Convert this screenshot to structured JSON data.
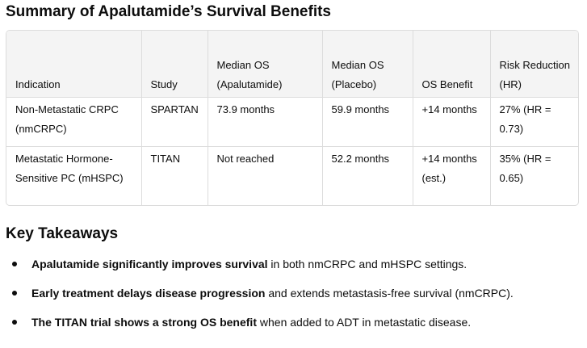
{
  "title": "Summary of Apalutamide’s Survival Benefits",
  "table": {
    "headers": [
      "Indication",
      "Study",
      "Median OS (Apalutamide)",
      "Median OS (Placebo)",
      "OS Benefit",
      "Risk Reduction (HR)"
    ],
    "rows": [
      [
        "Non-Metastatic CRPC (nmCRPC)",
        "SPARTAN",
        "73.9 months",
        "59.9 months",
        "+14 months",
        "27% (HR = 0.73)"
      ],
      [
        "Metastatic Hormone-Sensitive PC (mHSPC)",
        "TITAN",
        "Not reached",
        "52.2 months",
        "+14 months (est.)",
        "35% (HR = 0.65)"
      ]
    ]
  },
  "takeaways": {
    "heading": "Key Takeaways",
    "items": [
      {
        "bold": "Apalutamide significantly improves survival",
        "rest": " in both nmCRPC and mHSPC settings."
      },
      {
        "bold": "Early treatment delays disease progression",
        "rest": " and extends metastasis-free survival (nmCRPC)."
      },
      {
        "bold": "The TITAN trial shows a strong OS benefit",
        "rest": " when added to ADT in metastatic disease."
      }
    ]
  }
}
